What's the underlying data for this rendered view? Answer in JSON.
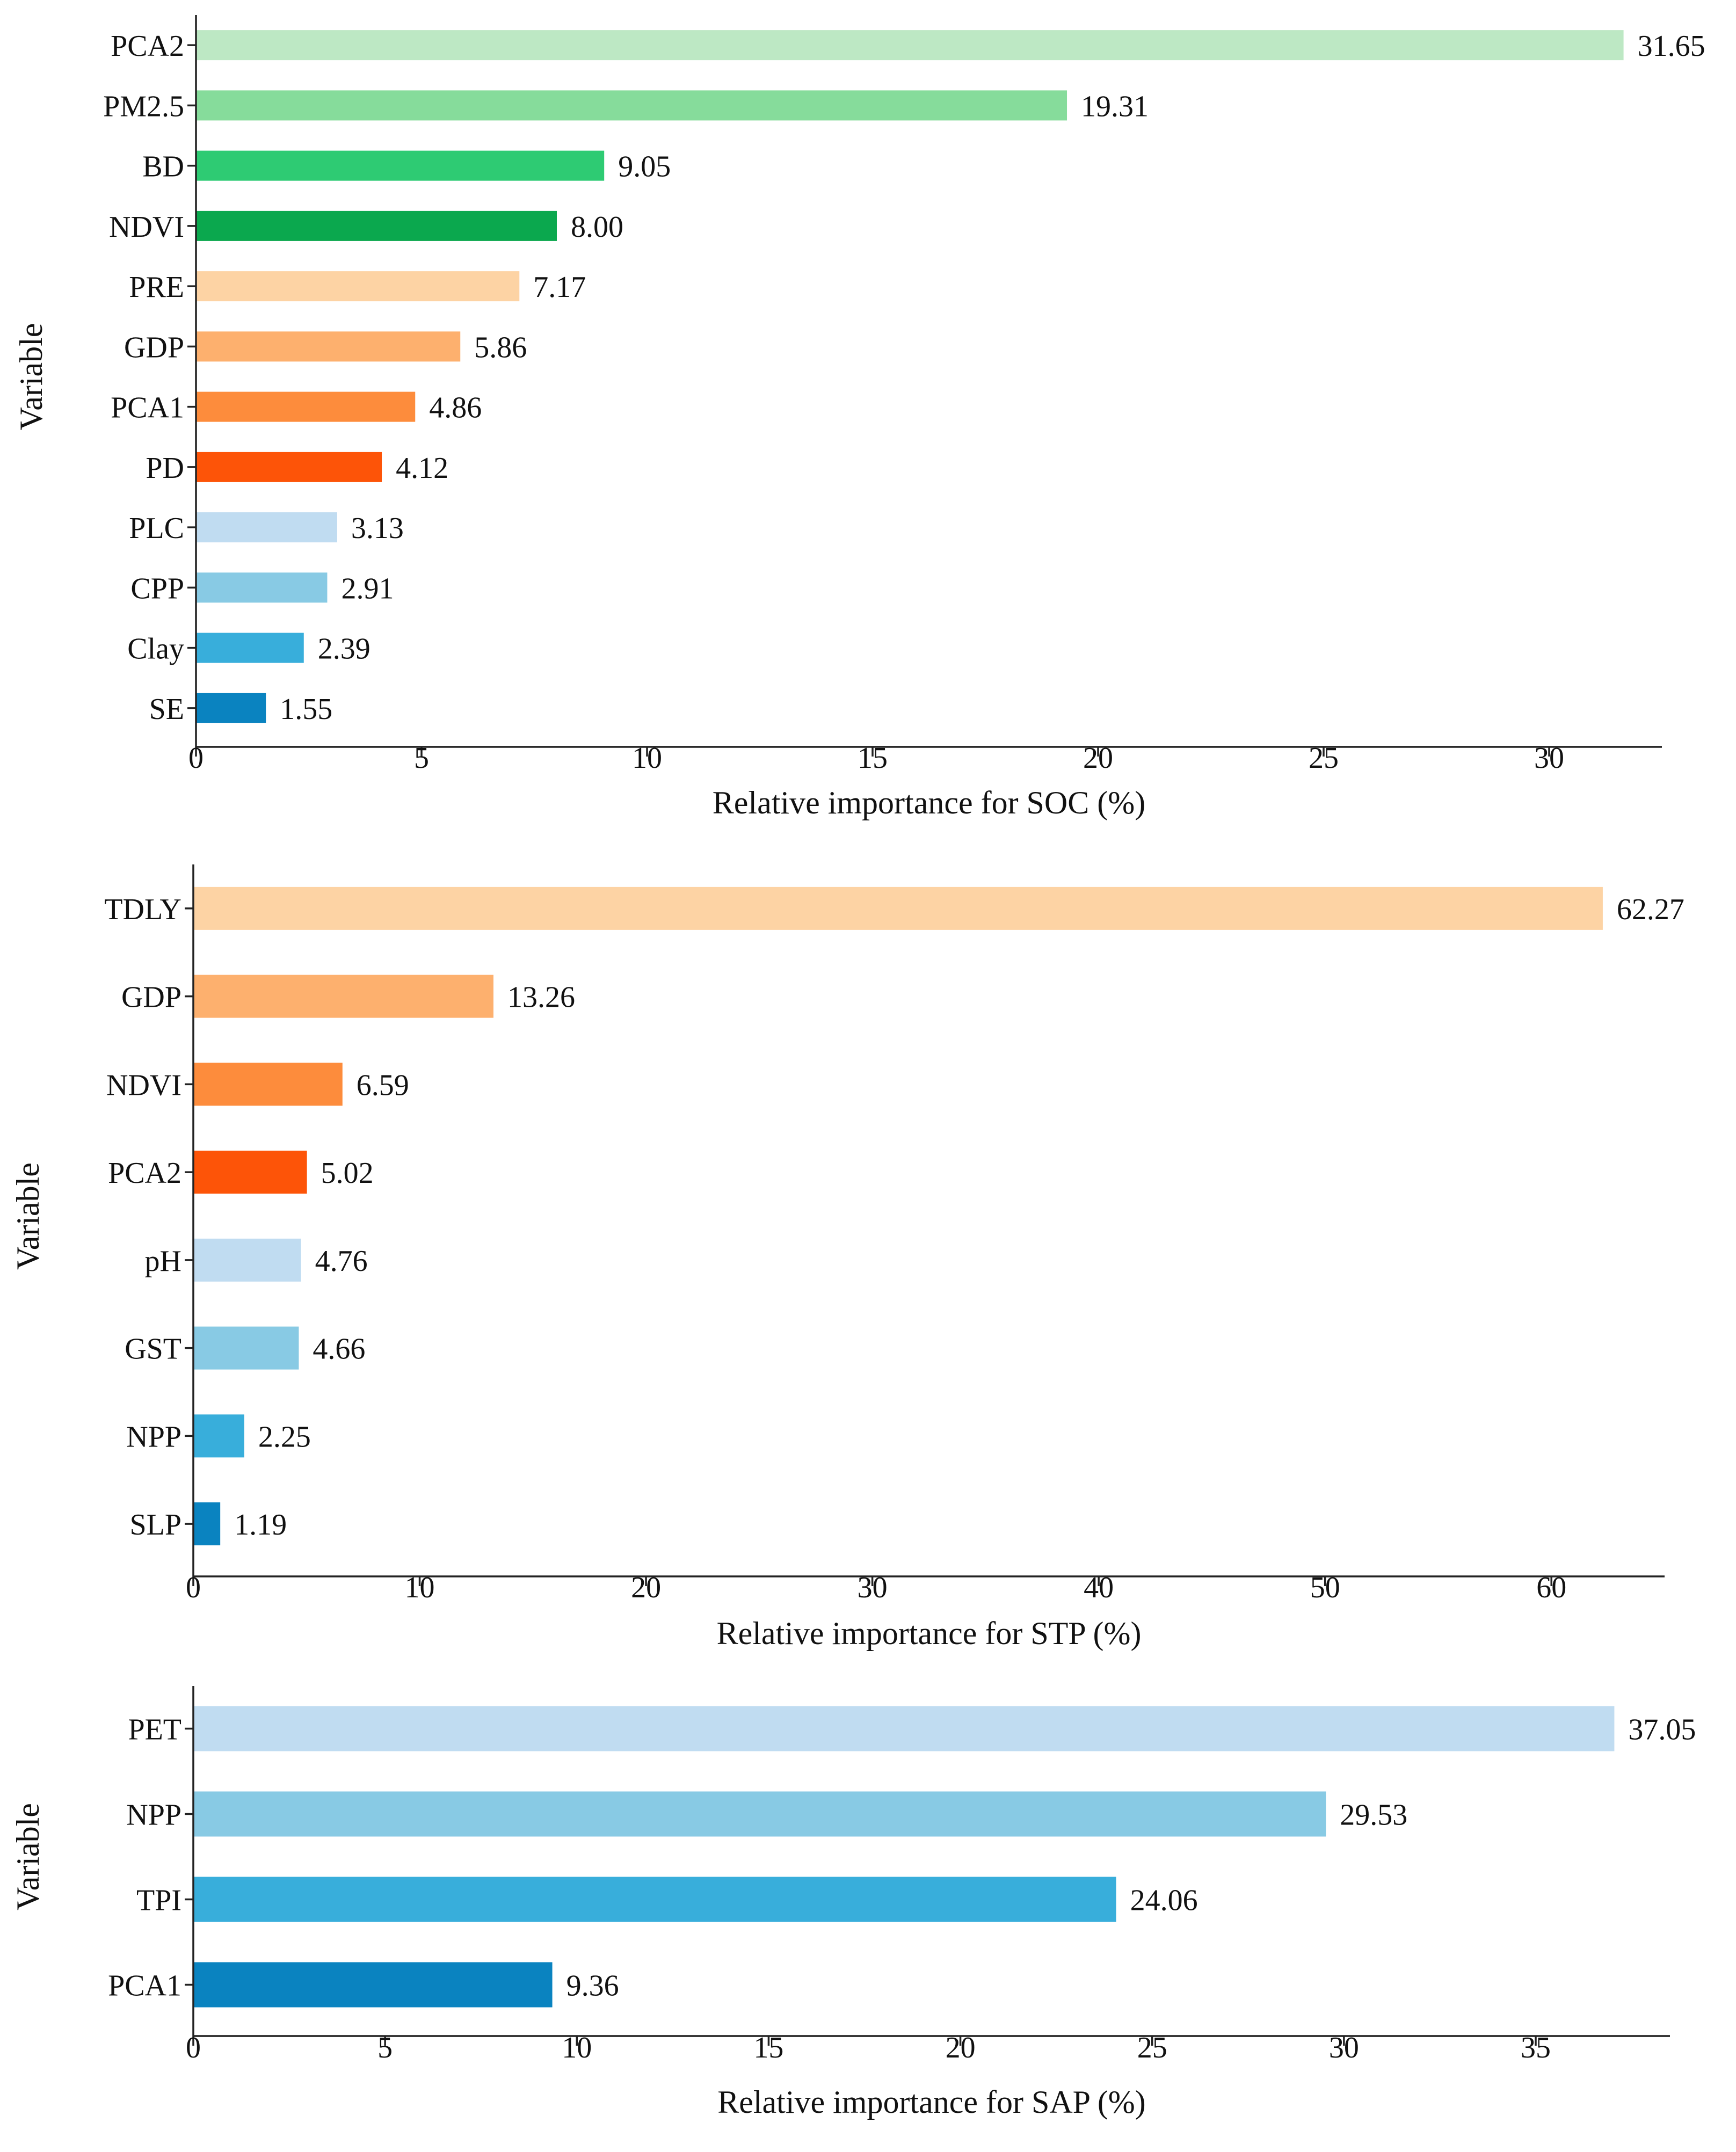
{
  "chart_data": [
    {
      "type": "bar",
      "orientation": "horizontal",
      "ylabel": "Variable",
      "xlabel": "Relative importance for SOC (%)",
      "xlim": [
        0,
        32.5
      ],
      "xticks": [
        0,
        5,
        10,
        15,
        20,
        25,
        30
      ],
      "categories": [
        "PCA2",
        "PM2.5",
        "BD",
        "NDVI",
        "PRE",
        "GDP",
        "PCA1",
        "PD",
        "PLC",
        "CPP",
        "Clay",
        "SE"
      ],
      "values": [
        31.65,
        19.31,
        9.05,
        8.0,
        7.17,
        5.86,
        4.86,
        4.12,
        3.13,
        2.91,
        2.39,
        1.55
      ],
      "value_labels": [
        "31.65",
        "19.31",
        "9.05",
        "8.00",
        "7.17",
        "5.86",
        "4.86",
        "4.12",
        "3.13",
        "2.91",
        "2.39",
        "1.55"
      ],
      "colors": [
        "#bde8c4",
        "#86dc9b",
        "#2ecb73",
        "#0ba84e",
        "#fdd3a4",
        "#fdb06e",
        "#fd8c3c",
        "#fd5408",
        "#c0dcf1",
        "#88cae4",
        "#38aedb",
        "#0a83c0"
      ]
    },
    {
      "type": "bar",
      "orientation": "horizontal",
      "ylabel": "Variable",
      "xlabel": "Relative importance for STP (%)",
      "xlim": [
        0,
        65
      ],
      "xticks": [
        0,
        10,
        20,
        30,
        40,
        50,
        60
      ],
      "categories": [
        "TDLY",
        "GDP",
        "NDVI",
        "PCA2",
        "pH",
        "GST",
        "NPP",
        "SLP"
      ],
      "values": [
        62.27,
        13.26,
        6.59,
        5.02,
        4.76,
        4.66,
        2.25,
        1.19
      ],
      "value_labels": [
        "62.27",
        "13.26",
        "6.59",
        "5.02",
        "4.76",
        "4.66",
        "2.25",
        "1.19"
      ],
      "colors": [
        "#fdd3a4",
        "#fdb06e",
        "#fd8c3c",
        "#fd5408",
        "#c0dcf1",
        "#88cae4",
        "#38aedb",
        "#0a83c0"
      ]
    },
    {
      "type": "bar",
      "orientation": "horizontal",
      "ylabel": "Variable",
      "xlabel": "Relative importance for SAP (%)",
      "xlim": [
        0,
        38.5
      ],
      "xticks": [
        0,
        5,
        10,
        15,
        20,
        25,
        30,
        35
      ],
      "categories": [
        "PET",
        "NPP",
        "TPI",
        "PCA1"
      ],
      "values": [
        37.05,
        29.53,
        24.06,
        9.36
      ],
      "value_labels": [
        "37.05",
        "29.53",
        "24.06",
        "9.36"
      ],
      "colors": [
        "#c0dcf1",
        "#88cae4",
        "#38aedb",
        "#0a83c0"
      ]
    }
  ]
}
